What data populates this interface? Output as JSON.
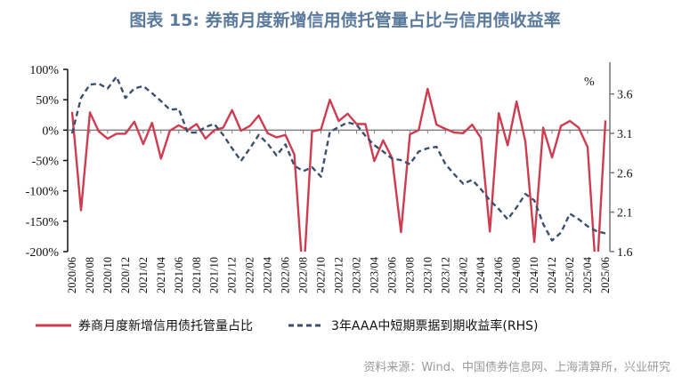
{
  "title": "图表 15: 券商月度新增信用债托管量占比与信用债收益率",
  "source": "资料来源：Wind、中国债券信息网、上海清算所，兴业研究",
  "colors": {
    "red": "#cd3c4f",
    "blue": "#3c4f6e",
    "title": "#5a7a9c"
  },
  "chart_data": {
    "type": "line",
    "title": "图表 15: 券商月度新增信用债托管量占比与信用债收益率",
    "x": [
      "2020/06",
      "2020/07",
      "2020/08",
      "2020/09",
      "2020/10",
      "2020/11",
      "2020/12",
      "2021/01",
      "2021/02",
      "2021/03",
      "2021/04",
      "2021/05",
      "2021/06",
      "2021/07",
      "2021/08",
      "2021/09",
      "2021/10",
      "2021/11",
      "2021/12",
      "2022/01",
      "2022/02",
      "2022/03",
      "2022/04",
      "2022/05",
      "2022/06",
      "2022/07",
      "2022/08",
      "2022/09",
      "2022/10",
      "2022/11",
      "2022/12",
      "2023/01",
      "2023/02",
      "2023/03",
      "2023/04",
      "2023/05",
      "2023/06",
      "2023/07",
      "2023/08",
      "2023/09",
      "2023/10",
      "2023/11",
      "2023/12",
      "2024/01",
      "2024/02",
      "2024/03",
      "2024/04",
      "2024/05",
      "2024/06",
      "2024/07",
      "2024/08",
      "2024/09",
      "2024/10",
      "2024/11",
      "2024/12",
      "2025/01",
      "2025/02",
      "2025/03",
      "2025/04",
      "2025/05",
      "2025/06"
    ],
    "xtick_labels": [
      "2020/06",
      "2020/08",
      "2020/10",
      "2020/12",
      "2021/02",
      "2021/04",
      "2021/06",
      "2021/08",
      "2021/10",
      "2021/12",
      "2022/02",
      "2022/04",
      "2022/06",
      "2022/08",
      "2022/10",
      "2022/12",
      "2023/02",
      "2023/04",
      "2023/06",
      "2023/08",
      "2023/10",
      "2023/12",
      "2024/02",
      "2024/04",
      "2024/06",
      "2024/08",
      "2024/10",
      "2024/12",
      "2025/02",
      "2025/04",
      "2025/06"
    ],
    "y_left": {
      "ylim": [
        -200,
        100
      ],
      "ticks": [
        "100%",
        "50%",
        "0%",
        "-50%",
        "-100%",
        "-150%",
        "-200%"
      ]
    },
    "y_right": {
      "ylim": [
        1.6,
        3.9
      ],
      "unit": "%",
      "ticks": [
        "3.6",
        "3.1",
        "2.6",
        "2.1",
        "1.6"
      ]
    },
    "series": [
      {
        "name": "券商月度新增信用债托管量占比",
        "axis": "left",
        "style": "solid",
        "color": "#cd3c4f",
        "values": [
          30,
          -132,
          29,
          -2,
          -14,
          -6,
          -6,
          14,
          -23,
          12,
          -47,
          -1,
          8,
          0,
          10,
          -14,
          0,
          4,
          33,
          -1,
          7,
          24,
          -5,
          -12,
          -8,
          -40,
          -250,
          -2,
          1,
          50,
          15,
          27,
          10,
          10,
          -51,
          -17,
          -46,
          -168,
          -7,
          0,
          68,
          9,
          2,
          -4,
          -5,
          9,
          -13,
          -167,
          28,
          -25,
          47,
          -19,
          -184,
          4,
          -45,
          7,
          15,
          4,
          -28,
          -250,
          16
        ]
      },
      {
        "name": "3年AAA中短期票据到期收益率(RHS)",
        "axis": "right",
        "style": "dashed",
        "color": "#3c4f6e",
        "values": [
          3.1,
          3.55,
          3.72,
          3.73,
          3.67,
          3.82,
          3.55,
          3.67,
          3.7,
          3.61,
          3.51,
          3.4,
          3.41,
          3.11,
          3.11,
          3.18,
          3.22,
          3.08,
          2.91,
          2.75,
          2.91,
          3.08,
          2.97,
          2.82,
          2.96,
          2.69,
          2.62,
          2.67,
          2.55,
          3.12,
          3.18,
          3.24,
          3.21,
          3.07,
          2.95,
          2.87,
          2.78,
          2.76,
          2.71,
          2.87,
          2.91,
          2.93,
          2.71,
          2.58,
          2.46,
          2.51,
          2.39,
          2.25,
          2.14,
          2.01,
          2.16,
          2.33,
          2.25,
          1.95,
          1.74,
          1.84,
          2.08,
          2.01,
          1.92,
          1.86,
          1.83
        ]
      }
    ],
    "legend": "bottom",
    "grid": false
  }
}
